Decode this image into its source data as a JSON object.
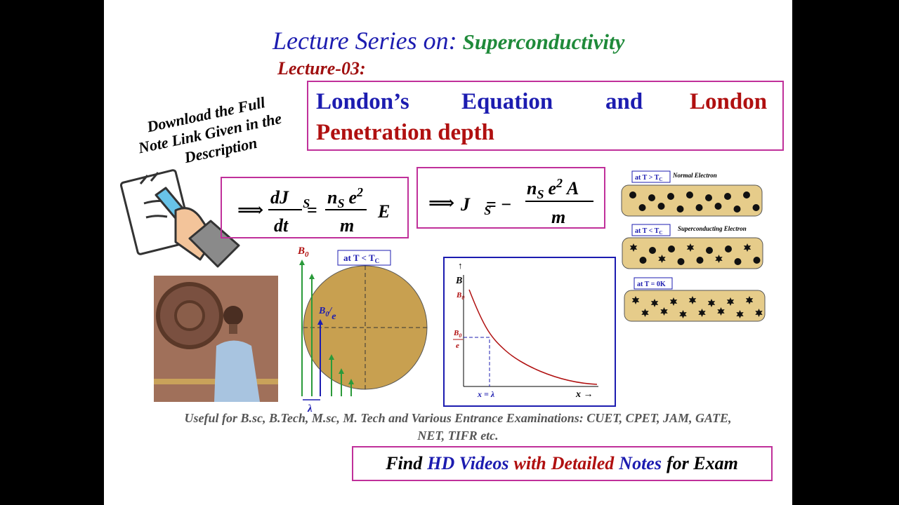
{
  "header": {
    "series_label": "Lecture Series on:",
    "topic": "Superconductivity",
    "lecture": "Lecture-03:"
  },
  "title_box": {
    "words": [
      "London’s",
      "Equation",
      "and",
      "London"
    ],
    "line2": "Penetration depth"
  },
  "download_note": [
    "Download  the Full",
    "Note Link Given in the",
    "Description"
  ],
  "equation_1": {
    "arrow": "⟹",
    "num": "dJ⃗",
    "num_sub": "S",
    "den": "dt",
    "eq": "=",
    "num2": "n",
    "num2_sub": "S",
    "num2_e": "e",
    "num2_sup": "2",
    "den2": "m",
    "vec": "E⃗"
  },
  "equation_2": {
    "arrow": "⟹",
    "lhs": "J⃗",
    "lhs_sub": "S",
    "eq": "= −",
    "num": "n",
    "num_sub": "S",
    "num_e": "e",
    "num_sup": "2",
    "num_vec": "A⃗",
    "den": "m"
  },
  "field_diagram": {
    "field": "B",
    "field_sub": "0",
    "temp": "at T < T",
    "temp_sub": "C",
    "inner": "B",
    "inner_sub": "0",
    "inner_slash": "/",
    "inner_e": "e",
    "depth": "λ"
  },
  "graph": {
    "y_arrow": "↑",
    "y_label": "B",
    "y_top": "B",
    "y_top_sub": "0",
    "y_mid": "B",
    "y_mid_sub": "0",
    "y_mid_den": "e",
    "x_mark": "x = λ",
    "x_label": "x →"
  },
  "electron_panels": [
    {
      "temp": "at T > T",
      "temp_sub": "C",
      "note": "Normal Electron"
    },
    {
      "temp": "at T < T",
      "temp_sub": "C",
      "note": "Superconducting Electron"
    },
    {
      "temp": "at T = 0K"
    }
  ],
  "footer": {
    "lines": [
      "Useful for B.sc, B.Tech, M.sc, M. Tech and Various Entrance Examinations: CUET, CPET, JAM, GATE,",
      "NET, TIFR etc."
    ],
    "banner": [
      "Find",
      "HD Videos",
      "with",
      "Detailed",
      "Notes",
      "for Exam"
    ]
  }
}
